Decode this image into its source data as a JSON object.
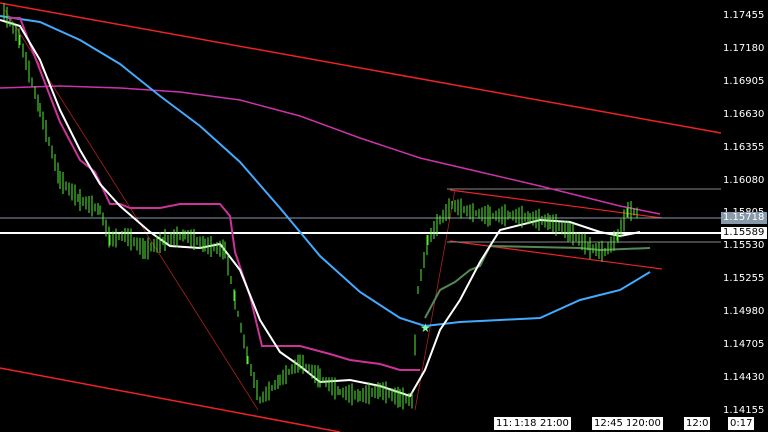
{
  "price_axis": {
    "labels": [
      "1.17455",
      "1.17180",
      "1.16905",
      "1.16630",
      "1.16355",
      "1.16080",
      "1.15805",
      "1.15530",
      "1.15255",
      "1.14980",
      "1.14705",
      "1.14430",
      "1.14155"
    ],
    "current_price": "1.15718",
    "line_price": "1.15589",
    "current_color": "#8899aa",
    "line_color": "#ffffff"
  },
  "time_axis": {
    "labels": [
      "11:",
      "1:18",
      "21:00",
      "12:45",
      "1",
      "20:00",
      "12:0",
      "0:17"
    ]
  },
  "colors": {
    "background": "#000000",
    "candles": "#55ee33",
    "channel": "#ee2222",
    "ma_fast": "#ffffff",
    "ma_slow": "#44aaff",
    "ma_long": "#cc33aa",
    "stepline": "#cc3399",
    "stepline2": "#558855"
  }
}
